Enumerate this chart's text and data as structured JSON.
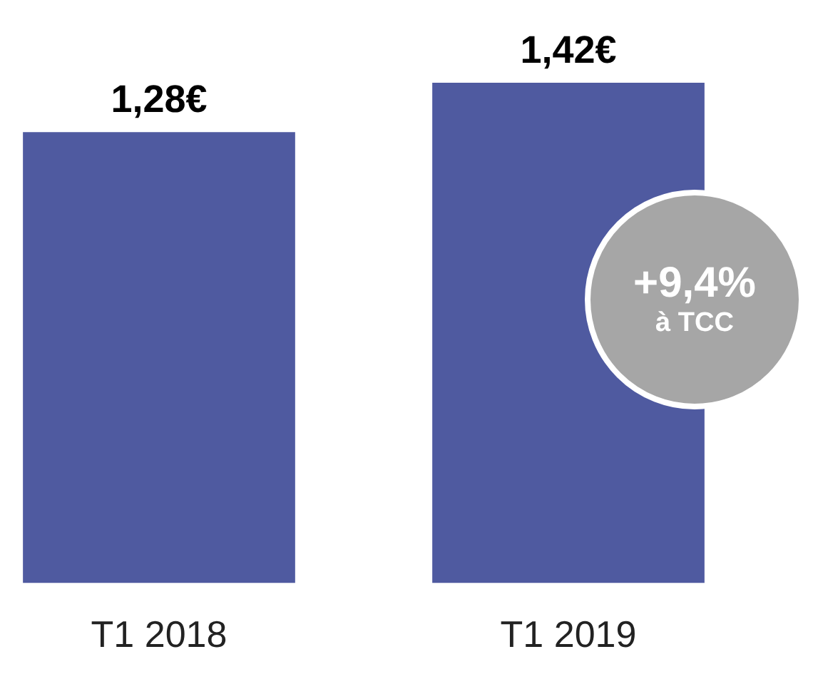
{
  "chart_data": {
    "type": "bar",
    "categories": [
      "T1 2018",
      "T1 2019"
    ],
    "values": [
      1.28,
      1.42
    ],
    "value_labels": [
      "1,28€",
      "1,42€"
    ],
    "color": "#4f5aa0",
    "tick_labels": "x",
    "annotations": [
      "+9,4%",
      "à TCC"
    ]
  }
}
